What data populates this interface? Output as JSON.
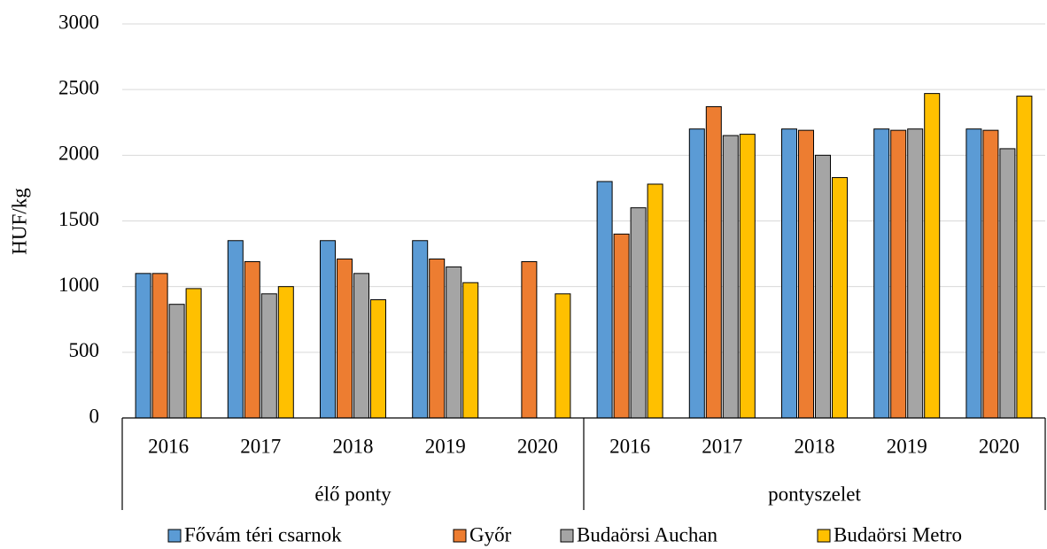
{
  "chart_data": {
    "type": "bar",
    "y_label": "HUF/kg",
    "groups": [
      {
        "name": "élő ponty",
        "categories": [
          "2016",
          "2017",
          "2018",
          "2019",
          "2020"
        ]
      },
      {
        "name": "pontyszelet",
        "categories": [
          "2016",
          "2017",
          "2018",
          "2019",
          "2020"
        ]
      }
    ],
    "series": [
      {
        "name": "Fővám téri csarnok",
        "color": "#5b9bd5",
        "values": [
          1100,
          1350,
          1350,
          1350,
          null,
          1800,
          2200,
          2200,
          2200,
          2200
        ]
      },
      {
        "name": "Győr",
        "color": "#ed7d31",
        "values": [
          1100,
          1190,
          1210,
          1210,
          1190,
          1400,
          2370,
          2190,
          2190,
          2190
        ]
      },
      {
        "name": "Budaörsi Auchan",
        "color": "#a5a5a5",
        "values": [
          865,
          945,
          1100,
          1150,
          null,
          1600,
          2150,
          2000,
          2200,
          2050
        ]
      },
      {
        "name": "Budaörsi Metro",
        "color": "#ffc000",
        "values": [
          985,
          1000,
          900,
          1030,
          945,
          1780,
          2160,
          1830,
          2470,
          2450
        ]
      }
    ],
    "ylim": [
      0,
      3000
    ],
    "yticks": [
      0,
      500,
      1000,
      1500,
      2000,
      2500,
      3000
    ],
    "grid": true
  }
}
